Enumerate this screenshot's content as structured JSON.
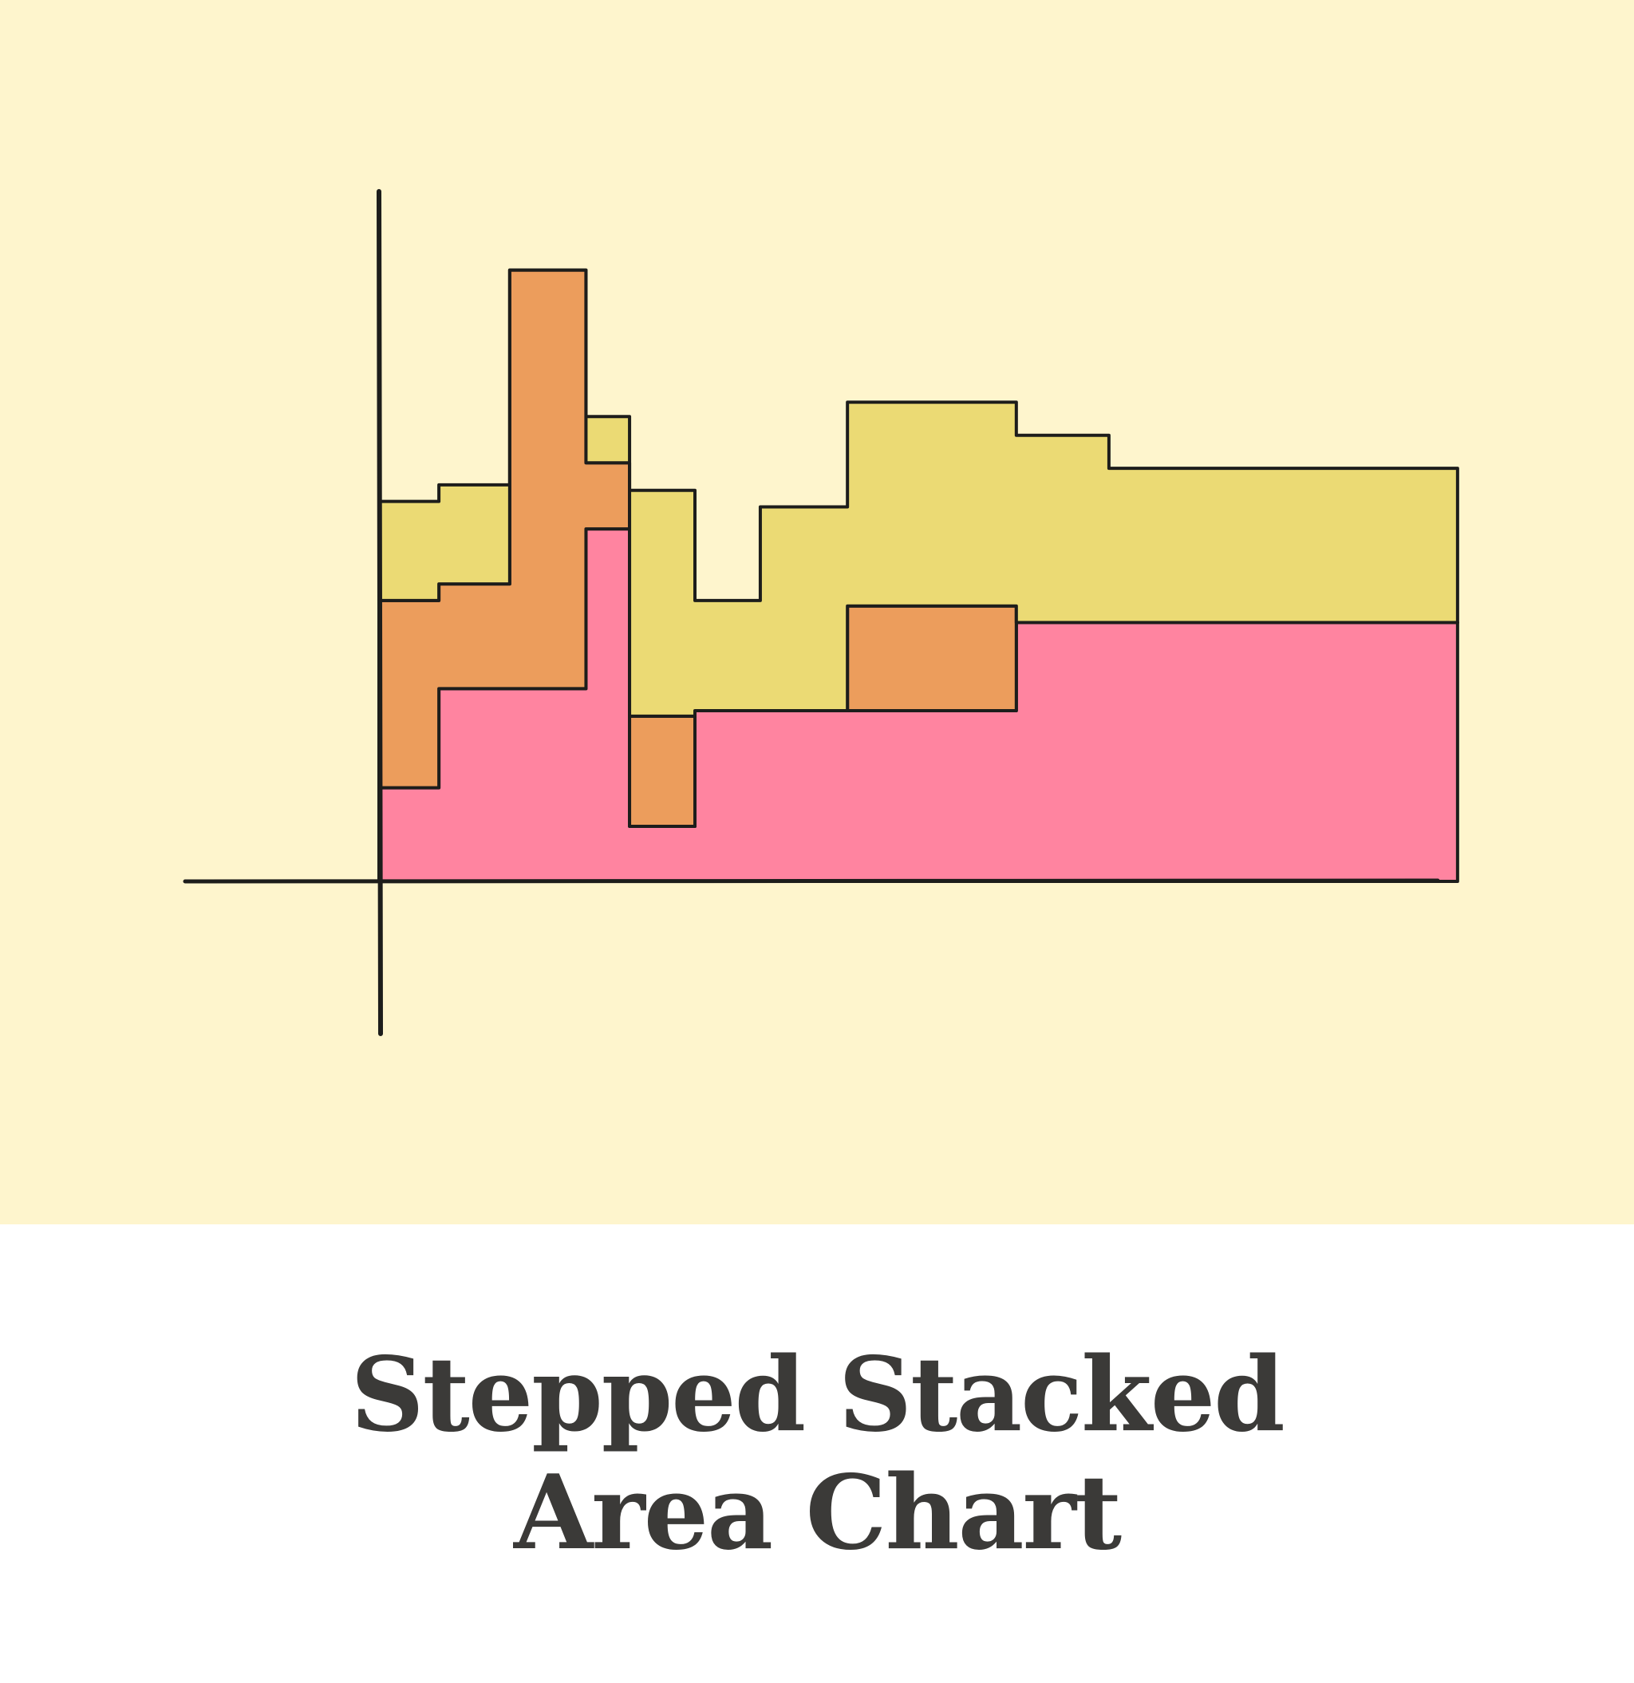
{
  "caption": {
    "title": "Stepped Stacked\nArea Chart"
  },
  "colors": {
    "background": "#fef5cd",
    "outline": "#1d1d1b",
    "caption_text": "#3b3a38"
  },
  "chart_data": {
    "type": "area",
    "step": true,
    "stacked": true,
    "title": "",
    "xlabel": "",
    "ylabel": "",
    "grid": false,
    "legend": "none",
    "xlim": [
      0,
      8.7
    ],
    "ylim": [
      0,
      6.3
    ],
    "x": [
      0,
      0.55,
      1.2,
      1.9,
      2.3,
      2.9,
      3.5,
      4.3,
      5.85,
      6.7
    ],
    "series": [
      {
        "color": "#ff84a0",
        "values": [
          0.85,
          1.75,
          1.75,
          3.2,
          0.5,
          1.55,
          1.55,
          1.55,
          2.35,
          2.35
        ]
      },
      {
        "color": "#ec9d5c",
        "values": [
          1.7,
          0.95,
          3.8,
          0.6,
          1.0,
          0.0,
          0.0,
          0.95,
          0,
          0
        ]
      },
      {
        "color": "#ebda74",
        "values": [
          0.9,
          0.9,
          0.0,
          0.42,
          2.05,
          1.0,
          1.85,
          1.85,
          1.7,
          1.4
        ]
      }
    ]
  }
}
